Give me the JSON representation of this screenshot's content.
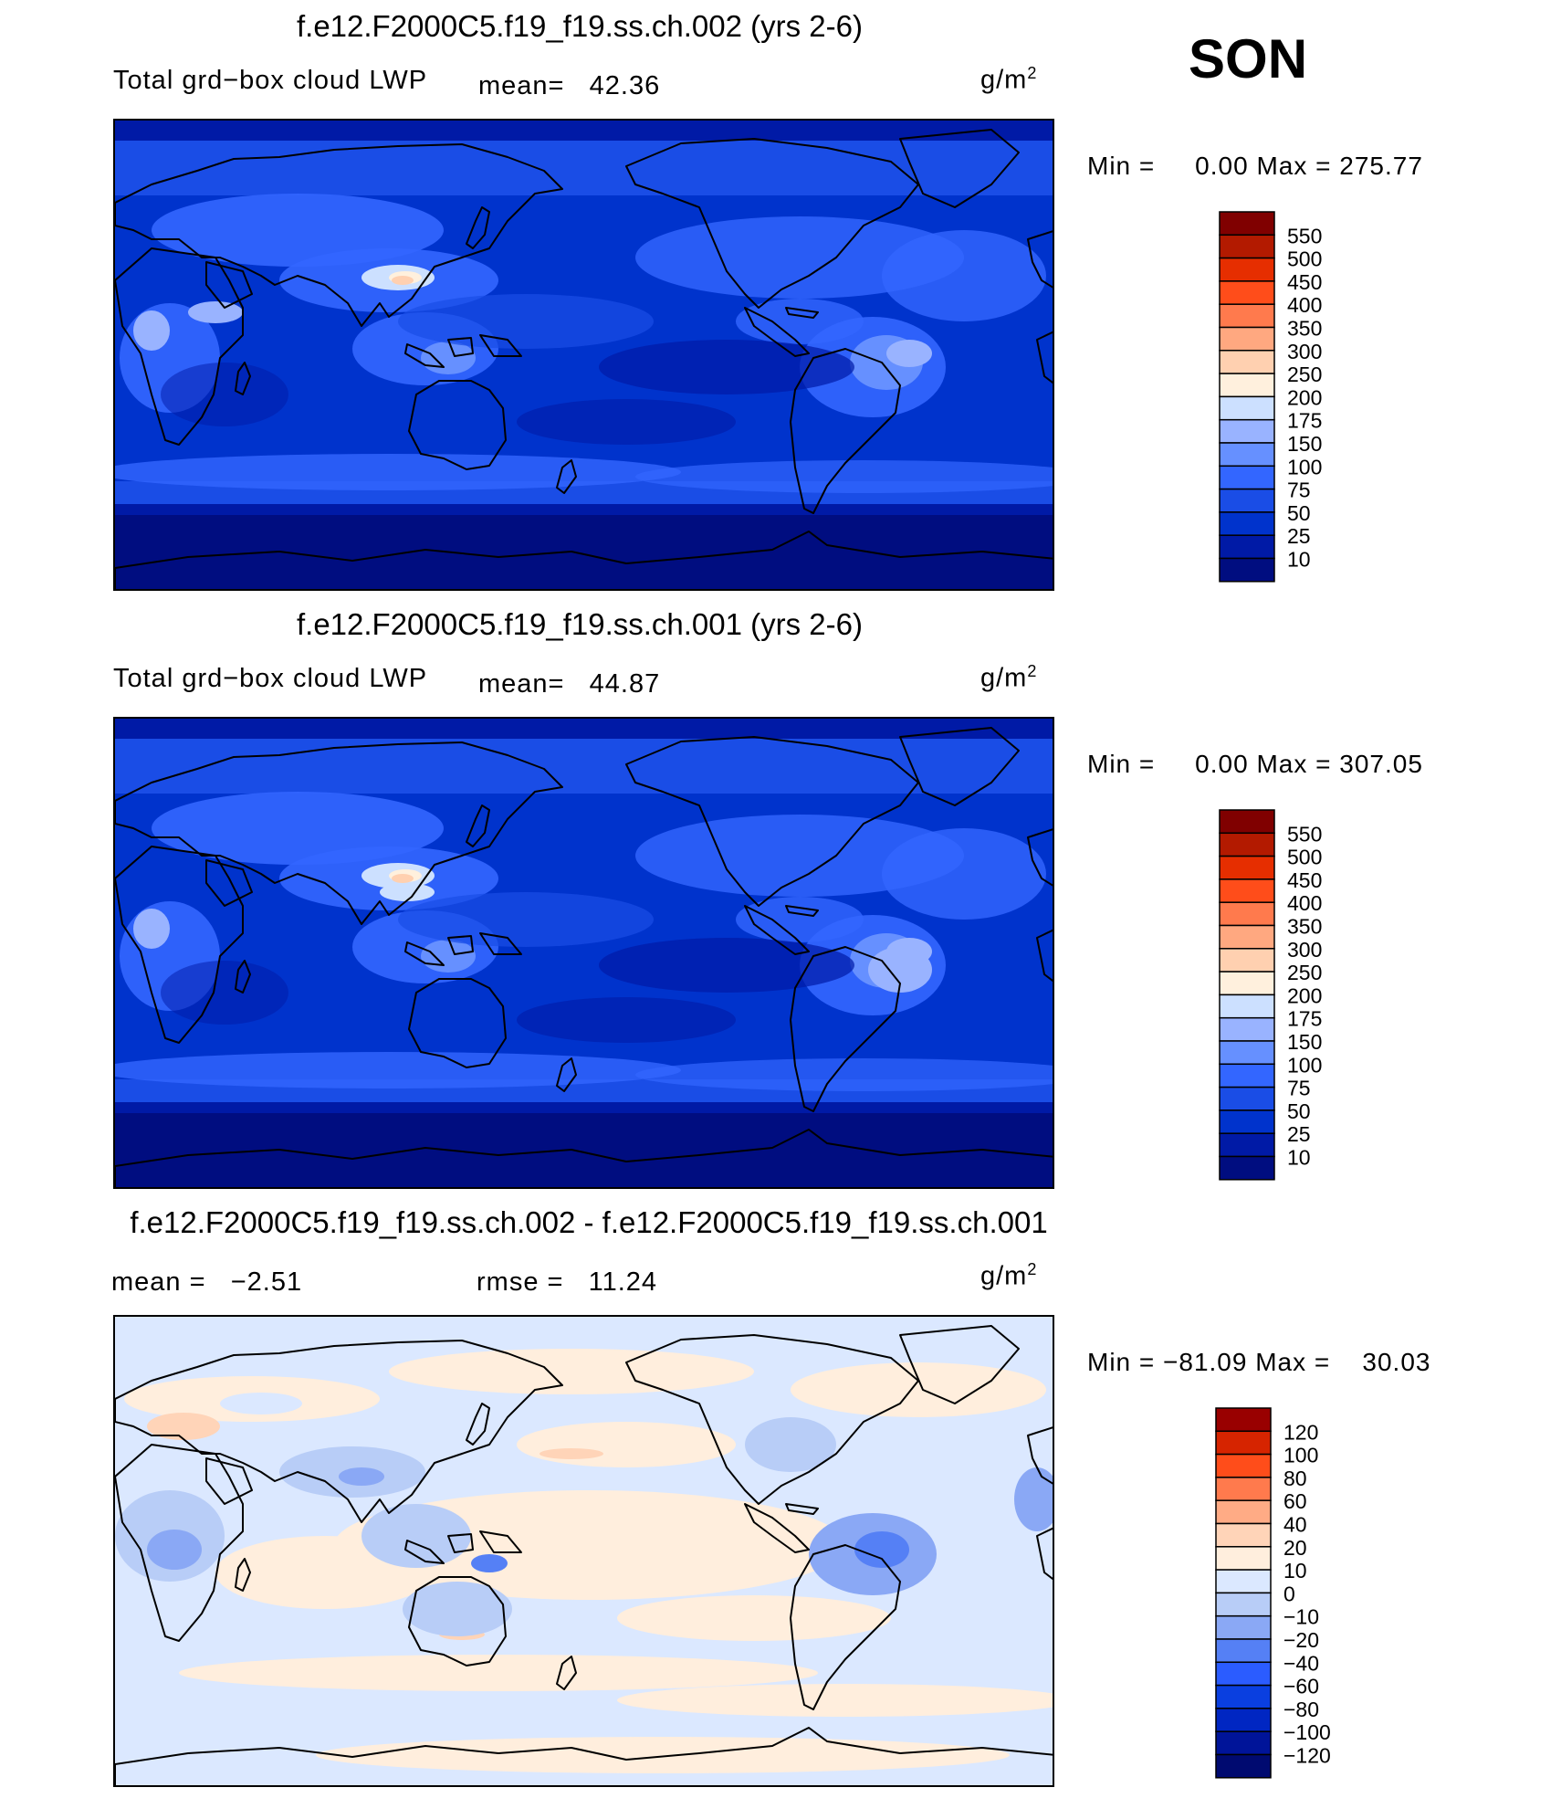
{
  "season": "SON",
  "panels": [
    {
      "title": "f.e12.F2000C5.f19_f19.ss.ch.002 (yrs 2-6)",
      "variable": "Total grd−box cloud LWP",
      "mean_label": "mean=",
      "mean_value": "42.36",
      "units": "g/m",
      "units_exp": "2",
      "min_label": "Min  =",
      "min_value": "0.00",
      "max_label": "Max  =",
      "max_value": "275.77"
    },
    {
      "title": "f.e12.F2000C5.f19_f19.ss.ch.001 (yrs 2-6)",
      "variable": "Total grd−box cloud LWP",
      "mean_label": "mean=",
      "mean_value": "44.87",
      "units": "g/m",
      "units_exp": "2",
      "min_label": "Min  =",
      "min_value": "0.00",
      "max_label": "Max  =",
      "max_value": "307.05"
    },
    {
      "title": "f.e12.F2000C5.f19_f19.ss.ch.002 - f.e12.F2000C5.f19_f19.ss.ch.001",
      "mean_label": "mean  =",
      "mean_value": "−2.51",
      "rmse_label": "rmse  =",
      "rmse_value": "11.24",
      "units": "g/m",
      "units_exp": "2",
      "min_label": "Min  =",
      "min_value": "−81.09",
      "max_label": "Max  =",
      "max_value": "30.03"
    }
  ],
  "chart_data": [
    {
      "type": "heatmap",
      "title": "f.e12.F2000C5.f19_f19.ss.ch.002 (yrs 2-6)",
      "mean": 42.36,
      "min": 0.0,
      "max": 275.77,
      "colorbar": {
        "levels": [
          "10",
          "25",
          "50",
          "75",
          "100",
          "150",
          "175",
          "200",
          "250",
          "300",
          "350",
          "400",
          "450",
          "500",
          "550"
        ],
        "colors": [
          "#000d80",
          "#001aa6",
          "#0033cc",
          "#1a4de6",
          "#3366ff",
          "#6690ff",
          "#99b3ff",
          "#cce0ff",
          "#fff0dd",
          "#ffd0b0",
          "#ffa880",
          "#ff7a4d",
          "#ff4d1a",
          "#e62e00",
          "#b31a00",
          "#800000"
        ]
      }
    },
    {
      "type": "heatmap",
      "title": "f.e12.F2000C5.f19_f19.ss.ch.001 (yrs 2-6)",
      "mean": 44.87,
      "min": 0.0,
      "max": 307.05,
      "colorbar": {
        "levels": [
          "10",
          "25",
          "50",
          "75",
          "100",
          "150",
          "175",
          "200",
          "250",
          "300",
          "350",
          "400",
          "450",
          "500",
          "550"
        ],
        "colors": [
          "#000d80",
          "#001aa6",
          "#0033cc",
          "#1a4de6",
          "#3366ff",
          "#6690ff",
          "#99b3ff",
          "#cce0ff",
          "#fff0dd",
          "#ffd0b0",
          "#ffa880",
          "#ff7a4d",
          "#ff4d1a",
          "#e62e00",
          "#b31a00",
          "#800000"
        ]
      }
    },
    {
      "type": "heatmap",
      "title": "f.e12.F2000C5.f19_f19.ss.ch.002 - f.e12.F2000C5.f19_f19.ss.ch.001",
      "mean": -2.51,
      "rmse": 11.24,
      "min": -81.09,
      "max": 30.03,
      "colorbar": {
        "levels": [
          "−120",
          "−100",
          "−80",
          "−60",
          "−40",
          "−20",
          "−10",
          "0",
          "10",
          "20",
          "40",
          "60",
          "80",
          "100",
          "120"
        ],
        "colors": [
          "#000a70",
          "#001499",
          "#0026c2",
          "#0a3fe0",
          "#2b5cff",
          "#5580f5",
          "#8aa8f5",
          "#b8cdf7",
          "#dbe8ff",
          "#ffeedd",
          "#ffd4b8",
          "#ffab85",
          "#ff7a4d",
          "#ff4d1a",
          "#d62400",
          "#990000"
        ]
      }
    }
  ]
}
